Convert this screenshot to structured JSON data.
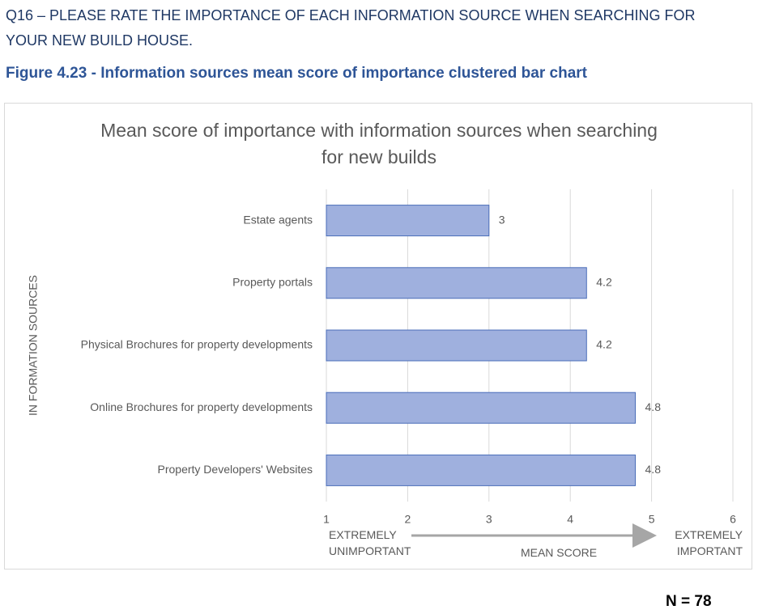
{
  "header": {
    "question": "Q16 – PLEASE RATE THE IMPORTANCE OF EACH INFORMATION SOURCE WHEN SEARCHING FOR YOUR NEW BUILD HOUSE.",
    "figure_caption": "Figure 4.23 - Information sources mean score of importance clustered bar chart"
  },
  "chart_data": {
    "type": "bar",
    "orientation": "horizontal",
    "title": "Mean score of importance with information sources when searching for new builds",
    "y_label": "IN FORMATION SOURCES",
    "x_annotations": [
      "EXTREMELY UNIMPORTANT",
      "MEAN SCORE",
      "EXTREMELY IMPORTANT"
    ],
    "categories": [
      "Estate agents",
      "Property portals",
      "Physical Brochures for property developments",
      "Online Brochures for property developments",
      "Property Developers' Websites"
    ],
    "values": [
      3,
      4.2,
      4.2,
      4.8,
      4.8
    ],
    "color": "#9fb0de",
    "edge_color": "#4a6db8",
    "xlim": [
      1,
      6
    ],
    "xticks": [
      1,
      2,
      3,
      4,
      5,
      6
    ],
    "grid": true
  },
  "footer": {
    "n": "N = 78"
  }
}
